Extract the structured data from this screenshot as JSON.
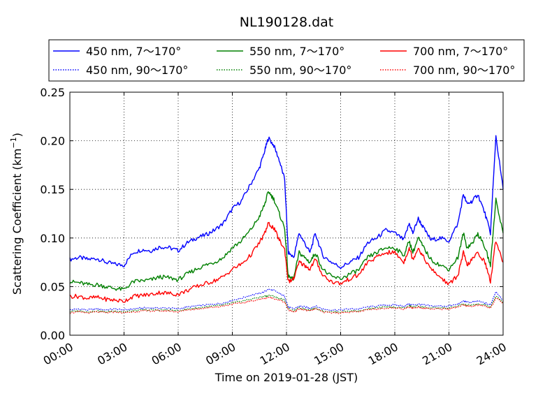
{
  "chart_data": {
    "type": "line",
    "title": "NL190128.dat",
    "xlabel": "Time on 2019-01-28 (JST)",
    "ylabel_main": "Scattering Coefficient (km",
    "ylabel_sup": "−1",
    "ylabel_close": ")",
    "x_unit": "hours",
    "xlim": [
      0,
      24
    ],
    "ylim": [
      0,
      0.25
    ],
    "xticks": [
      0,
      3,
      6,
      9,
      12,
      15,
      18,
      21,
      24
    ],
    "xtick_labels": [
      "00:00",
      "03:00",
      "06:00",
      "09:00",
      "12:00",
      "15:00",
      "18:00",
      "21:00",
      "24:00"
    ],
    "yticks": [
      0,
      0.05,
      0.1,
      0.15,
      0.2,
      0.25
    ],
    "ytick_labels": [
      "0.00",
      "0.05",
      "0.10",
      "0.15",
      "0.20",
      "0.25"
    ],
    "grid": true,
    "legend_position": "top (above plot, 3 columns)",
    "x": [
      0,
      0.5,
      1,
      1.5,
      2,
      2.5,
      3,
      3.5,
      4,
      4.5,
      5,
      5.5,
      6,
      6.5,
      7,
      7.5,
      8,
      8.5,
      9,
      9.5,
      10,
      10.5,
      10.8,
      11,
      11.3,
      11.6,
      11.9,
      12.1,
      12.4,
      12.7,
      13,
      13.3,
      13.6,
      14,
      14.5,
      15,
      15.5,
      16,
      16.5,
      17,
      17.5,
      18,
      18.5,
      18.8,
      19,
      19.3,
      19.6,
      20,
      20.5,
      21,
      21.5,
      21.8,
      22,
      22.3,
      22.6,
      23,
      23.3,
      23.6,
      24
    ],
    "series": [
      {
        "name": "450 nm, 7～170°",
        "color": "#0000ff",
        "style": "solid",
        "values": [
          0.078,
          0.08,
          0.078,
          0.079,
          0.075,
          0.073,
          0.072,
          0.085,
          0.088,
          0.087,
          0.091,
          0.09,
          0.087,
          0.095,
          0.1,
          0.103,
          0.108,
          0.115,
          0.13,
          0.138,
          0.155,
          0.172,
          0.19,
          0.203,
          0.195,
          0.18,
          0.16,
          0.085,
          0.08,
          0.105,
          0.095,
          0.085,
          0.105,
          0.082,
          0.075,
          0.07,
          0.075,
          0.08,
          0.095,
          0.1,
          0.108,
          0.105,
          0.098,
          0.115,
          0.105,
          0.12,
          0.11,
          0.098,
          0.1,
          0.097,
          0.115,
          0.145,
          0.135,
          0.138,
          0.145,
          0.125,
          0.105,
          0.205,
          0.15
        ]
      },
      {
        "name": "450 nm, 90～170°",
        "color": "#0000ff",
        "style": "dotted",
        "values": [
          0.026,
          0.027,
          0.026,
          0.027,
          0.026,
          0.027,
          0.026,
          0.027,
          0.028,
          0.028,
          0.028,
          0.028,
          0.027,
          0.029,
          0.03,
          0.031,
          0.032,
          0.033,
          0.036,
          0.038,
          0.041,
          0.043,
          0.045,
          0.047,
          0.046,
          0.043,
          0.04,
          0.029,
          0.027,
          0.03,
          0.029,
          0.028,
          0.03,
          0.027,
          0.026,
          0.026,
          0.027,
          0.027,
          0.029,
          0.03,
          0.031,
          0.031,
          0.03,
          0.032,
          0.031,
          0.032,
          0.031,
          0.03,
          0.03,
          0.03,
          0.032,
          0.035,
          0.034,
          0.034,
          0.035,
          0.033,
          0.031,
          0.045,
          0.036
        ]
      },
      {
        "name": "550 nm, 7～170°",
        "color": "#008000",
        "style": "solid",
        "values": [
          0.055,
          0.054,
          0.052,
          0.052,
          0.05,
          0.048,
          0.047,
          0.055,
          0.056,
          0.057,
          0.06,
          0.059,
          0.057,
          0.063,
          0.068,
          0.072,
          0.075,
          0.08,
          0.09,
          0.097,
          0.108,
          0.122,
          0.135,
          0.148,
          0.14,
          0.125,
          0.11,
          0.06,
          0.058,
          0.085,
          0.08,
          0.075,
          0.085,
          0.068,
          0.06,
          0.058,
          0.063,
          0.067,
          0.08,
          0.085,
          0.09,
          0.09,
          0.082,
          0.097,
          0.085,
          0.1,
          0.09,
          0.078,
          0.072,
          0.068,
          0.08,
          0.105,
          0.09,
          0.095,
          0.105,
          0.09,
          0.072,
          0.14,
          0.105
        ]
      },
      {
        "name": "550 nm, 90～170°",
        "color": "#008000",
        "style": "dotted",
        "values": [
          0.024,
          0.025,
          0.024,
          0.025,
          0.024,
          0.025,
          0.024,
          0.025,
          0.026,
          0.026,
          0.026,
          0.026,
          0.025,
          0.027,
          0.028,
          0.029,
          0.03,
          0.031,
          0.033,
          0.035,
          0.037,
          0.039,
          0.04,
          0.041,
          0.04,
          0.038,
          0.036,
          0.027,
          0.025,
          0.028,
          0.027,
          0.026,
          0.028,
          0.025,
          0.024,
          0.024,
          0.025,
          0.025,
          0.027,
          0.028,
          0.029,
          0.029,
          0.028,
          0.03,
          0.029,
          0.03,
          0.029,
          0.028,
          0.028,
          0.028,
          0.03,
          0.032,
          0.031,
          0.031,
          0.032,
          0.031,
          0.029,
          0.04,
          0.034
        ]
      },
      {
        "name": "700 nm, 7～170°",
        "color": "#ff0000",
        "style": "solid",
        "values": [
          0.04,
          0.04,
          0.038,
          0.039,
          0.037,
          0.036,
          0.035,
          0.04,
          0.041,
          0.042,
          0.044,
          0.043,
          0.042,
          0.046,
          0.05,
          0.053,
          0.056,
          0.06,
          0.068,
          0.073,
          0.082,
          0.095,
          0.105,
          0.115,
          0.11,
          0.098,
          0.088,
          0.055,
          0.058,
          0.075,
          0.072,
          0.068,
          0.078,
          0.062,
          0.055,
          0.053,
          0.058,
          0.062,
          0.075,
          0.08,
          0.085,
          0.085,
          0.075,
          0.09,
          0.078,
          0.09,
          0.08,
          0.068,
          0.06,
          0.052,
          0.062,
          0.085,
          0.072,
          0.078,
          0.085,
          0.075,
          0.055,
          0.098,
          0.075
        ]
      },
      {
        "name": "700 nm, 90～170°",
        "color": "#ff0000",
        "style": "dotted",
        "values": [
          0.023,
          0.024,
          0.023,
          0.024,
          0.023,
          0.024,
          0.023,
          0.024,
          0.025,
          0.025,
          0.025,
          0.025,
          0.024,
          0.026,
          0.027,
          0.028,
          0.029,
          0.03,
          0.032,
          0.033,
          0.035,
          0.037,
          0.038,
          0.039,
          0.038,
          0.036,
          0.034,
          0.026,
          0.024,
          0.027,
          0.026,
          0.025,
          0.027,
          0.024,
          0.023,
          0.023,
          0.024,
          0.024,
          0.026,
          0.027,
          0.028,
          0.028,
          0.027,
          0.029,
          0.028,
          0.029,
          0.028,
          0.027,
          0.027,
          0.027,
          0.029,
          0.031,
          0.03,
          0.03,
          0.031,
          0.03,
          0.028,
          0.038,
          0.033
        ]
      }
    ]
  }
}
